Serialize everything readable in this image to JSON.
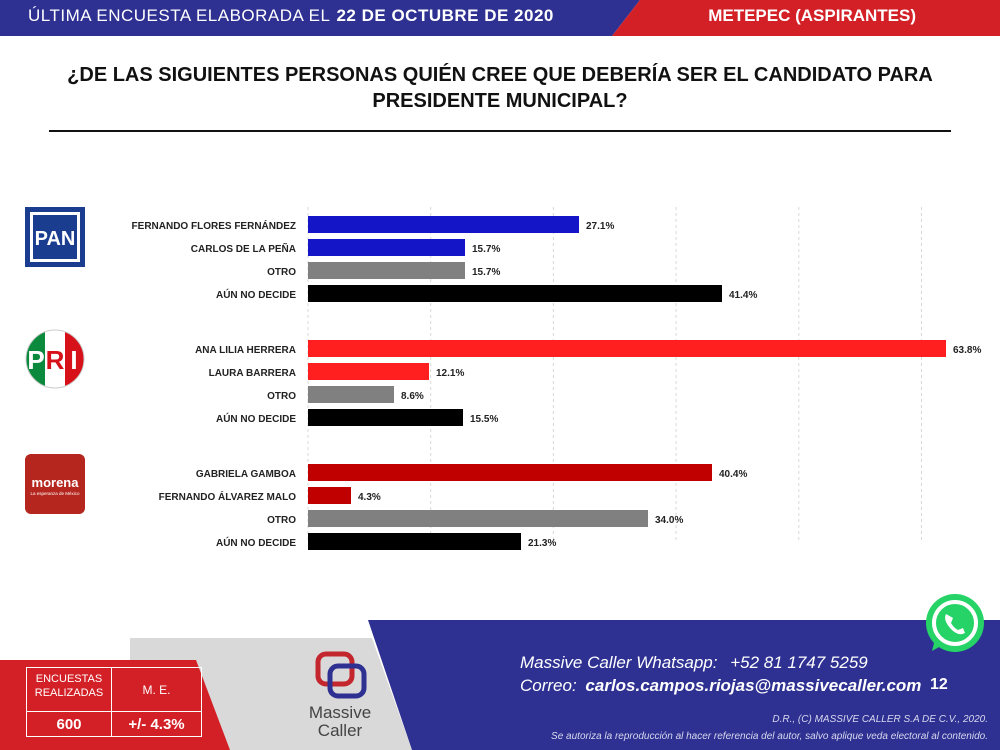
{
  "header": {
    "prefix": "ÚLTIMA ENCUESTA ELABORADA EL",
    "date": "22 DE OCTUBRE DE 2020",
    "location": "METEPEC (ASPIRANTES)"
  },
  "question": {
    "line1": "¿DE LAS SIGUIENTES PERSONAS QUIÉN CREE QUE DEBERÍA SER EL CANDIDATO PARA",
    "line2": "PRESIDENTE MUNICIPAL?"
  },
  "logos": {
    "pan": "PAN",
    "pri_p": "P",
    "pri_r": "R",
    "pri_i": "I",
    "morena": "morena",
    "morena_sub": "La esperanza de México"
  },
  "chart_data": {
    "type": "bar",
    "orientation": "horizontal",
    "xlim": [
      0,
      65
    ],
    "value_format": "percent-1-decimal",
    "groups": [
      {
        "party": "PAN",
        "categories": [
          "FERNANDO FLORES FERNÁNDEZ",
          "CARLOS DE LA PEÑA",
          "OTRO",
          "AÚN NO DECIDE"
        ],
        "values": [
          27.1,
          15.7,
          15.7,
          41.4
        ],
        "labels": [
          "27.1%",
          "15.7%",
          "15.7%",
          "41.4%"
        ],
        "colors": [
          "#1515c8",
          "#1515c8",
          "#808080",
          "#000000"
        ]
      },
      {
        "party": "PRI",
        "categories": [
          "ANA LILIA HERRERA",
          "LAURA BARRERA",
          "OTRO",
          "AÚN NO DECIDE"
        ],
        "values": [
          63.8,
          12.1,
          8.6,
          15.5
        ],
        "labels": [
          "63.8%",
          "12.1%",
          "8.6%",
          "15.5%"
        ],
        "colors": [
          "#ff1f1f",
          "#ff1f1f",
          "#808080",
          "#000000"
        ]
      },
      {
        "party": "MORENA",
        "categories": [
          "GABRIELA GAMBOA",
          "FERNANDO ÁLVAREZ MALO",
          "OTRO",
          "AÚN NO DECIDE"
        ],
        "values": [
          40.4,
          4.3,
          34.0,
          21.3
        ],
        "labels": [
          "40.4%",
          "4.3%",
          "34.0%",
          "21.3%"
        ],
        "colors": [
          "#c00000",
          "#c00000",
          "#808080",
          "#000000"
        ]
      }
    ]
  },
  "footer": {
    "whatsapp_label": "Massive Caller Whatsapp:",
    "whatsapp_number": "+52 81 1747 5259",
    "email_label": "Correo:",
    "email": "carlos.campos.riojas@massivecaller.com",
    "page_number": "12",
    "copyright": "D.R., (C) MASSIVE CALLER S.A DE C.V., 2020.",
    "notice": "Se autoriza la reproducción al hacer referencia del autor, salvo aplique veda electoral al contenido.",
    "brand_line1": "Massive",
    "brand_line2": "Caller"
  },
  "stats": {
    "surveys_label": "ENCUESTAS REALIZADAS",
    "surveys_value": "600",
    "me_label": "M. E.",
    "me_value": "+/- 4.3%"
  },
  "colors": {
    "navy": "#2e3192",
    "red": "#d32027",
    "grey": "#d9d9d9",
    "whatsapp": "#25d366"
  }
}
